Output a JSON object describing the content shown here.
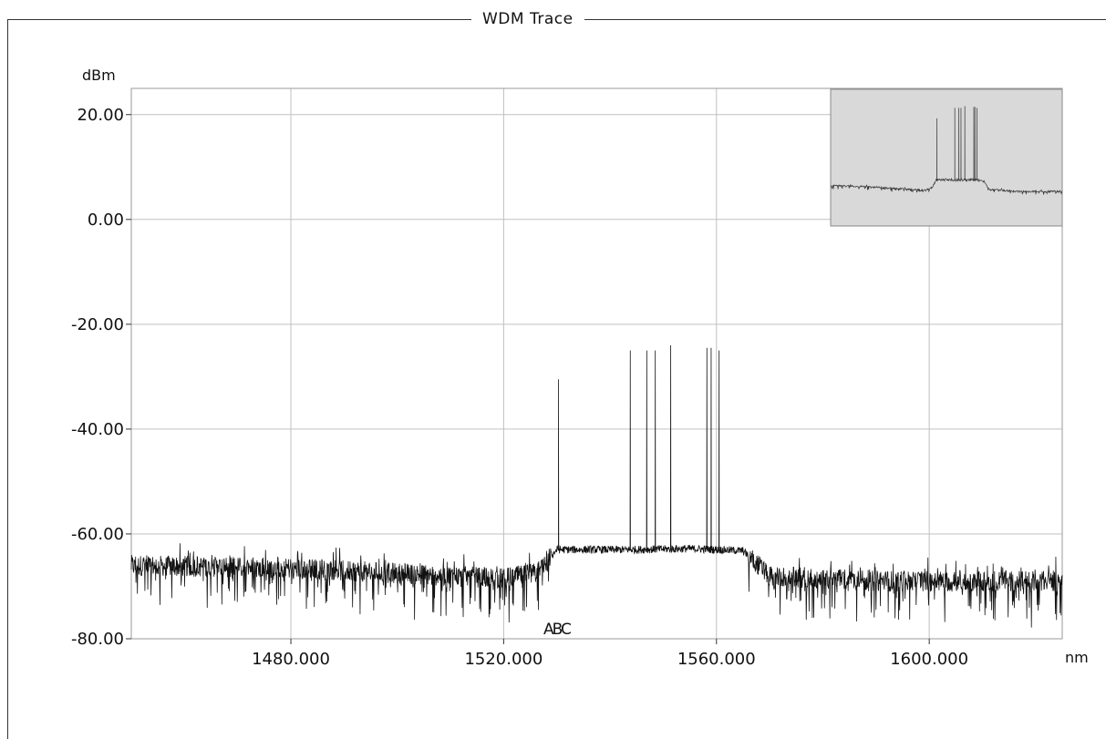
{
  "panel": {
    "title": "WDM Trace"
  },
  "chart_data": {
    "type": "line",
    "title": "WDM Trace",
    "xlabel": "nm",
    "ylabel": "dBm",
    "xlim": [
      1450.0,
      1625.0
    ],
    "ylim": [
      -80.0,
      25.0
    ],
    "x_ticks": [
      1480.0,
      1520.0,
      1560.0,
      1600.0
    ],
    "x_tick_labels": [
      "1480.000",
      "1520.000",
      "1560.000",
      "1600.000"
    ],
    "y_ticks": [
      20.0,
      0.0,
      -20.0,
      -40.0,
      -60.0,
      -80.0
    ],
    "y_tick_labels": [
      "20.00",
      "0.00",
      "-20.00",
      "-40.00",
      "-60.00",
      "-80.00"
    ],
    "grid": true,
    "markers": {
      "label": "ABC",
      "x": 1530.0
    },
    "baseline": [
      {
        "x": 1450.0,
        "y": -66.0
      },
      {
        "x": 1480.0,
        "y": -66.5
      },
      {
        "x": 1500.0,
        "y": -67.5
      },
      {
        "x": 1520.0,
        "y": -68.5
      },
      {
        "x": 1526.0,
        "y": -67.5
      },
      {
        "x": 1530.0,
        "y": -63.0
      },
      {
        "x": 1545.0,
        "y": -63.0
      },
      {
        "x": 1555.0,
        "y": -62.8
      },
      {
        "x": 1565.0,
        "y": -63.2
      },
      {
        "x": 1570.0,
        "y": -68.0
      },
      {
        "x": 1590.0,
        "y": -69.0
      },
      {
        "x": 1625.0,
        "y": -69.0
      }
    ],
    "noise": {
      "outside_band_db": 7,
      "inside_band_db": 1.5
    },
    "peaks": [
      {
        "x": 1530.3,
        "y": -30.5
      },
      {
        "x": 1543.8,
        "y": -25.0
      },
      {
        "x": 1546.9,
        "y": -25.0
      },
      {
        "x": 1548.5,
        "y": -25.0
      },
      {
        "x": 1551.4,
        "y": -24.0
      },
      {
        "x": 1558.2,
        "y": -24.5
      },
      {
        "x": 1559.0,
        "y": -24.5
      },
      {
        "x": 1560.5,
        "y": -25.0
      }
    ],
    "overview": {
      "background": "#d9d9d9",
      "line_color": "#333333"
    },
    "line_color": "#111111",
    "grid_color": "#c0c0c0"
  }
}
